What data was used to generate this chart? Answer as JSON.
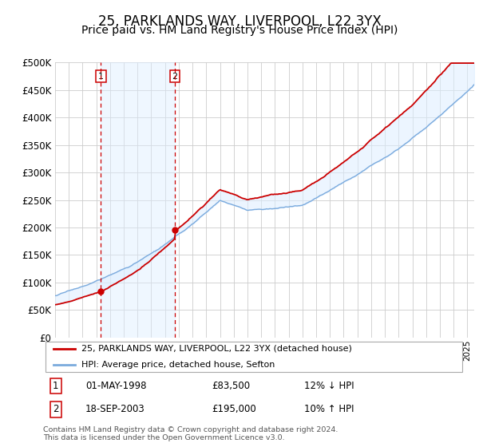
{
  "title": "25, PARKLANDS WAY, LIVERPOOL, L22 3YX",
  "subtitle": "Price paid vs. HM Land Registry's House Price Index (HPI)",
  "ylim": [
    0,
    500000
  ],
  "yticks": [
    0,
    50000,
    100000,
    150000,
    200000,
    250000,
    300000,
    350000,
    400000,
    450000,
    500000
  ],
  "xlim_start": 1995.0,
  "xlim_end": 2025.5,
  "sale1_date": 1998.33,
  "sale1_price": 83500,
  "sale1_label": "1",
  "sale1_date_str": "01-MAY-1998",
  "sale1_price_str": "£83,500",
  "sale1_hpi_str": "12% ↓ HPI",
  "sale2_date": 2003.72,
  "sale2_price": 195000,
  "sale2_label": "2",
  "sale2_date_str": "18-SEP-2003",
  "sale2_price_str": "£195,000",
  "sale2_hpi_str": "10% ↑ HPI",
  "red_line_color": "#cc0000",
  "blue_line_color": "#7aaadd",
  "blue_fill_color": "#ddeeff",
  "dashed_line_color": "#cc0000",
  "shaded_region_color": "#ddeeff",
  "grid_color": "#cccccc",
  "legend1_label": "25, PARKLANDS WAY, LIVERPOOL, L22 3YX (detached house)",
  "legend2_label": "HPI: Average price, detached house, Sefton",
  "footer": "Contains HM Land Registry data © Crown copyright and database right 2024.\nThis data is licensed under the Open Government Licence v3.0.",
  "title_fontsize": 12,
  "subtitle_fontsize": 10
}
